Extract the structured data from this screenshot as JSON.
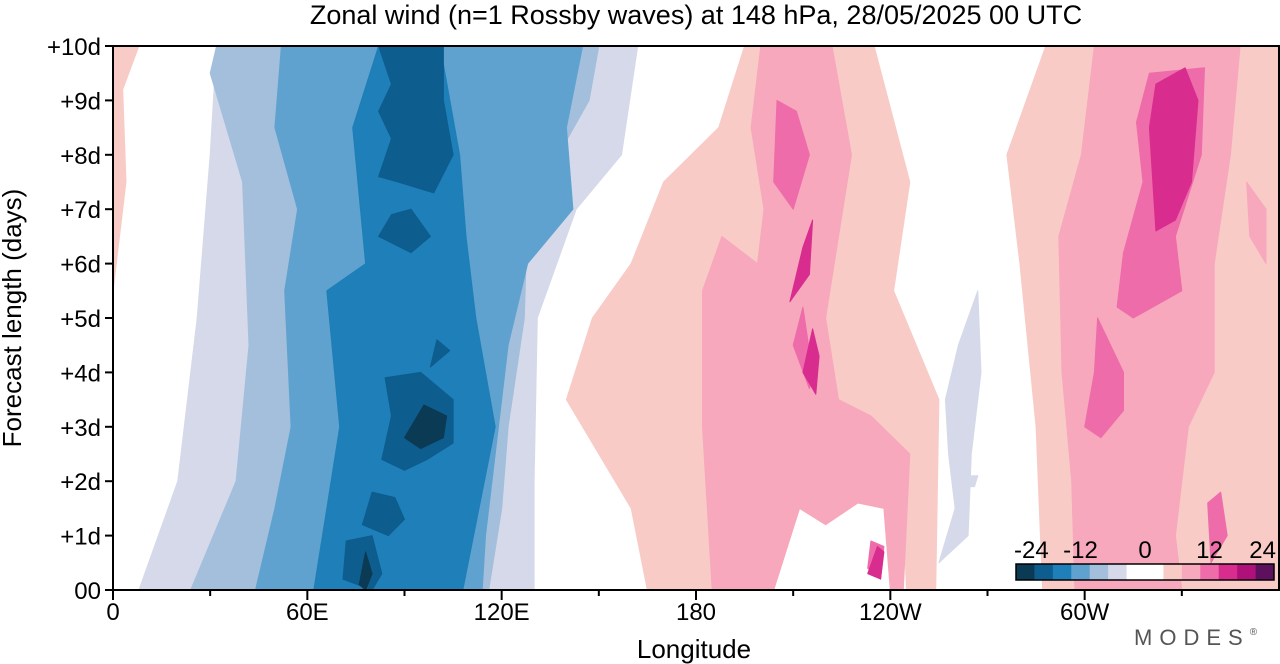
{
  "chart_data": {
    "type": "heatmap",
    "title": "Zonal wind (n=1 Rossby waves) at 148 hPa,  28/05/2025  00 UTC",
    "xlabel": "Longitude",
    "ylabel": "Forecast length (days)",
    "x_ticks": [
      {
        "lon": 0,
        "label": "0"
      },
      {
        "lon": 60,
        "label": "60E"
      },
      {
        "lon": 120,
        "label": "120E"
      },
      {
        "lon": 180,
        "label": "180"
      },
      {
        "lon": 240,
        "label": "120W"
      },
      {
        "lon": 300,
        "label": "60W"
      }
    ],
    "x_minor_lons": [
      30,
      90,
      150,
      210,
      270,
      330
    ],
    "xlim": [
      0,
      360
    ],
    "y_ticks": [
      {
        "day": 0,
        "label": "00"
      },
      {
        "day": 1,
        "label": "+1d"
      },
      {
        "day": 2,
        "label": "+2d"
      },
      {
        "day": 3,
        "label": "+3d"
      },
      {
        "day": 4,
        "label": "+4d"
      },
      {
        "day": 5,
        "label": "+5d"
      },
      {
        "day": 6,
        "label": "+6d"
      },
      {
        "day": 7,
        "label": "+7d"
      },
      {
        "day": 8,
        "label": "+8d"
      },
      {
        "day": 9,
        "label": "+9d"
      },
      {
        "day": 10,
        "label": "+10d"
      }
    ],
    "ylim": [
      0,
      10
    ],
    "colorbar": {
      "labels": [
        "-24",
        "-12",
        "0",
        "12",
        "24"
      ],
      "colors": [
        "#0b3a55",
        "#0d5d8f",
        "#1f7fb8",
        "#5fa2cf",
        "#a3bfdc",
        "#d5d9ea",
        "#ffffff",
        "#ffffff",
        "#f8cbc7",
        "#f7a8bd",
        "#ee6ca9",
        "#d92c8f",
        "#b0107a",
        "#5e0f5e"
      ]
    },
    "fields": [
      {
        "level": "neg-1",
        "color": "#d5d9ea",
        "polys": [
          [
            [
              8,
              0
            ],
            [
              20,
              2
            ],
            [
              26,
              5
            ],
            [
              30,
              8
            ],
            [
              32,
              10
            ],
            [
              162,
              10
            ],
            [
              157,
              8
            ],
            [
              143,
              7
            ],
            [
              131,
              5
            ],
            [
              130,
              2
            ],
            [
              130,
              0
            ]
          ],
          [
            [
              255,
              0.5
            ],
            [
              260,
              1.5
            ],
            [
              258,
              2.5
            ],
            [
              257,
              3.5
            ],
            [
              261,
              4.5
            ],
            [
              267,
              5.5
            ],
            [
              268,
              4
            ],
            [
              265,
              2.5
            ],
            [
              264,
              1
            ]
          ]
        ]
      },
      {
        "level": "neg-2",
        "color": "#a3bfdc",
        "polys": [
          [
            [
              24,
              0
            ],
            [
              38,
              2
            ],
            [
              42,
              4.5
            ],
            [
              40,
              7.5
            ],
            [
              30,
              9.5
            ],
            [
              32,
              10
            ],
            [
              150,
              10
            ],
            [
              147,
              9
            ],
            [
              128,
              7
            ],
            [
              127,
              5
            ],
            [
              122,
              3
            ],
            [
              120,
              1.5
            ],
            [
              116,
              0
            ]
          ]
        ]
      },
      {
        "level": "neg-3",
        "color": "#5fa2cf",
        "polys": [
          [
            [
              44,
              0
            ],
            [
              50,
              1.5
            ],
            [
              55,
              3
            ],
            [
              53,
              5.5
            ],
            [
              57,
              7
            ],
            [
              50,
              8.5
            ],
            [
              52,
              10
            ],
            [
              145,
              10
            ],
            [
              140,
              8.5
            ],
            [
              142,
              7
            ],
            [
              128,
              6
            ],
            [
              122,
              4.5
            ],
            [
              118,
              2.5
            ],
            [
              115,
              1
            ],
            [
              114,
              0
            ]
          ]
        ]
      },
      {
        "level": "neg-4",
        "color": "#1f7fb8",
        "polys": [
          [
            [
              62,
              0
            ],
            [
              66,
              1.5
            ],
            [
              70,
              3
            ],
            [
              66,
              5.5
            ],
            [
              78,
              6
            ],
            [
              74,
              8.5
            ],
            [
              82,
              10
            ],
            [
              101,
              10
            ],
            [
              107,
              8
            ],
            [
              109,
              6.5
            ],
            [
              112,
              5
            ],
            [
              118,
              3
            ],
            [
              113,
              1.5
            ],
            [
              108,
              0
            ]
          ]
        ]
      },
      {
        "level": "neg-5",
        "color": "#0d5d8f",
        "polys": [
          [
            [
              71,
              0.2
            ],
            [
              72,
              0.9
            ],
            [
              80,
              1
            ],
            [
              83,
              0.3
            ],
            [
              80,
              0
            ]
          ],
          [
            [
              77,
              1.2
            ],
            [
              80,
              1.8
            ],
            [
              87,
              1.7
            ],
            [
              90,
              1.3
            ],
            [
              85,
              1
            ]
          ],
          [
            [
              83,
              2.4
            ],
            [
              86,
              3.2
            ],
            [
              84,
              3.9
            ],
            [
              95,
              4
            ],
            [
              105,
              3.5
            ],
            [
              105,
              2.7
            ],
            [
              97,
              2.4
            ],
            [
              90,
              2.2
            ]
          ],
          [
            [
              98,
              4.1
            ],
            [
              100,
              4.6
            ],
            [
              104,
              4.4
            ]
          ],
          [
            [
              82,
              6.5
            ],
            [
              86,
              6.9
            ],
            [
              92,
              7
            ],
            [
              98,
              6.5
            ],
            [
              92,
              6.2
            ]
          ],
          [
            [
              82,
              7.6
            ],
            [
              86,
              8.3
            ],
            [
              82,
              8.8
            ],
            [
              86,
              9.3
            ],
            [
              82,
              10
            ],
            [
              102,
              10
            ],
            [
              102,
              9
            ],
            [
              105,
              8
            ],
            [
              99,
              7.3
            ],
            [
              88,
              7.5
            ]
          ]
        ]
      },
      {
        "level": "neg-6",
        "color": "#0b3a55",
        "polys": [
          [
            [
              76,
              0.1
            ],
            [
              78,
              0.7
            ],
            [
              80,
              0.3
            ],
            [
              78,
              0
            ]
          ],
          [
            [
              90,
              2.8
            ],
            [
              96,
              3.4
            ],
            [
              103,
              3.2
            ],
            [
              102,
              2.8
            ],
            [
              95,
              2.6
            ]
          ]
        ]
      },
      {
        "level": "pos-1",
        "color": "#f8cbc7",
        "polys": [
          [
            [
              0,
              5.5
            ],
            [
              4,
              7.5
            ],
            [
              3,
              9.2
            ],
            [
              8,
              10
            ],
            [
              0,
              10
            ]
          ],
          [
            [
              165,
              0
            ],
            [
              160,
              1.5
            ],
            [
              145,
              3
            ],
            [
              140,
              3.5
            ],
            [
              148,
              5
            ],
            [
              160,
              6
            ],
            [
              170,
              7.5
            ],
            [
              187,
              8.5
            ],
            [
              195,
              10
            ],
            [
              235,
              10
            ],
            [
              246,
              7.5
            ],
            [
              241,
              5.5
            ],
            [
              255,
              3.5
            ],
            [
              254,
              0
            ],
            [
              245,
              0
            ],
            [
              244,
              1.5
            ],
            [
              232,
              2.8
            ],
            [
              218,
              2.2
            ],
            [
              208,
              1.5
            ],
            [
              197,
              0
            ]
          ],
          [
            [
              287,
              0
            ],
            [
              285,
              3
            ],
            [
              280,
              6
            ],
            [
              276,
              8
            ],
            [
              288,
              10
            ],
            [
              360,
              10
            ],
            [
              360,
              0
            ]
          ]
        ]
      },
      {
        "level": "pos-2",
        "color": "#f7a8bd",
        "polys": [
          [
            [
              185,
              0
            ],
            [
              182,
              3
            ],
            [
              182,
              5.5
            ],
            [
              188,
              6.5
            ],
            [
              199,
              6
            ],
            [
              201,
              7
            ],
            [
              197,
              8.5
            ],
            [
              200,
              10
            ],
            [
              222,
              10
            ],
            [
              228,
              8
            ],
            [
              220,
              5
            ],
            [
              224,
              3.5
            ],
            [
              234,
              3.2
            ],
            [
              246,
              2.5
            ],
            [
              244,
              0
            ],
            [
              240,
              0
            ],
            [
              238,
              1.5
            ],
            [
              230,
              1.6
            ],
            [
              220,
              1.2
            ],
            [
              212,
              1.5
            ],
            [
              204,
              0
            ]
          ],
          [
            [
              297,
              0
            ],
            [
              296,
              2
            ],
            [
              293,
              4
            ],
            [
              292,
              6.5
            ],
            [
              299,
              8
            ],
            [
              303,
              10
            ],
            [
              348,
              10
            ],
            [
              345,
              8
            ],
            [
              340,
              6
            ],
            [
              340,
              4
            ],
            [
              332,
              3
            ],
            [
              328,
              1
            ],
            [
              330,
              0
            ]
          ],
          [
            [
              351,
              6.5
            ],
            [
              350,
              7.5
            ],
            [
              356,
              7
            ],
            [
              356,
              6
            ]
          ]
        ]
      },
      {
        "level": "pos-3",
        "color": "#ee6ca9",
        "polys": [
          [
            [
              204,
              7.5
            ],
            [
              205,
              9
            ],
            [
              211,
              8.8
            ],
            [
              215,
              8
            ],
            [
              210,
              7
            ]
          ],
          [
            [
              210,
              4.5
            ],
            [
              213,
              5.2
            ],
            [
              216,
              4
            ],
            [
              215,
              3.7
            ]
          ],
          [
            [
              233,
              0.4
            ],
            [
              234,
              0.9
            ],
            [
              238,
              0.8
            ],
            [
              237,
              0.2
            ]
          ],
          [
            [
              300,
              3
            ],
            [
              303,
              4
            ],
            [
              304,
              5
            ],
            [
              312,
              4
            ],
            [
              312,
              3.3
            ],
            [
              305,
              2.8
            ]
          ],
          [
            [
              310,
              5.2
            ],
            [
              312,
              6.2
            ],
            [
              318,
              7.5
            ],
            [
              316,
              8.6
            ],
            [
              320,
              9.5
            ],
            [
              337,
              9.6
            ],
            [
              336,
              8
            ],
            [
              328,
              6.5
            ],
            [
              330,
              5.5
            ],
            [
              315,
              5
            ]
          ],
          [
            [
              339,
              0.5
            ],
            [
              338,
              1.6
            ],
            [
              342,
              1.8
            ],
            [
              344,
              1
            ]
          ]
        ]
      },
      {
        "level": "pos-4",
        "color": "#d92c8f",
        "polys": [
          [
            [
              209,
              5.3
            ],
            [
              213,
              6.3
            ],
            [
              216,
              6.8
            ],
            [
              215,
              5.8
            ]
          ],
          [
            [
              213,
              4
            ],
            [
              216,
              4.8
            ],
            [
              218,
              4.3
            ],
            [
              217,
              3.6
            ]
          ],
          [
            [
              233,
              0.3
            ],
            [
              236,
              0.8
            ],
            [
              238,
              0.7
            ],
            [
              237,
              0.2
            ]
          ],
          [
            [
              322,
              6.6
            ],
            [
              320,
              8.5
            ],
            [
              322,
              9.3
            ],
            [
              331,
              9.6
            ],
            [
              335,
              9
            ],
            [
              333,
              7.5
            ],
            [
              328,
              6.8
            ]
          ]
        ]
      },
      {
        "level": "neg-1-isolated",
        "color": "#d5d9ea",
        "polys": [
          [
            [
              264,
              1.9
            ],
            [
              265,
              2.1
            ],
            [
              267,
              2.1
            ],
            [
              266,
              1.9
            ]
          ]
        ]
      }
    ]
  },
  "brand": {
    "text": "MODES",
    "mark": "®"
  }
}
